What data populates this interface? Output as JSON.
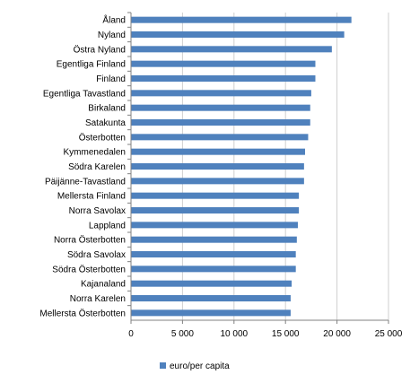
{
  "chart_data": {
    "type": "bar",
    "orientation": "horizontal",
    "categories": [
      "Åland",
      "Nyland",
      "Östra Nyland",
      "Egentliga Finland",
      "Finland",
      "Egentliga Tavastland",
      "Birkaland",
      "Satakunta",
      "Österbotten",
      "Kymmenedalen",
      "Södra Karelen",
      "Päijänne-Tavastland",
      "Mellersta Finland",
      "Norra Savolax",
      "Lappland",
      "Norra Österbotten",
      "Södra Savolax",
      "Södra Österbotten",
      "Kajanaland",
      "Norra Karelen",
      "Mellersta Österbotten"
    ],
    "series": [
      {
        "name": "euro/per capita",
        "color": "#4F81BD",
        "values": [
          21400,
          20700,
          19500,
          17900,
          17900,
          17500,
          17400,
          17400,
          17200,
          16900,
          16800,
          16800,
          16300,
          16300,
          16200,
          16100,
          16000,
          16000,
          15600,
          15500,
          15500
        ]
      }
    ],
    "xlim": [
      0,
      25000
    ],
    "xticks": [
      0,
      5000,
      10000,
      15000,
      20000,
      25000
    ],
    "xtick_labels": [
      "0",
      "5 000",
      "10 000",
      "15 000",
      "20 000",
      "25 000"
    ],
    "grid": "vertical",
    "legend_position": "bottom-left",
    "title": "",
    "xlabel": "",
    "ylabel": ""
  }
}
